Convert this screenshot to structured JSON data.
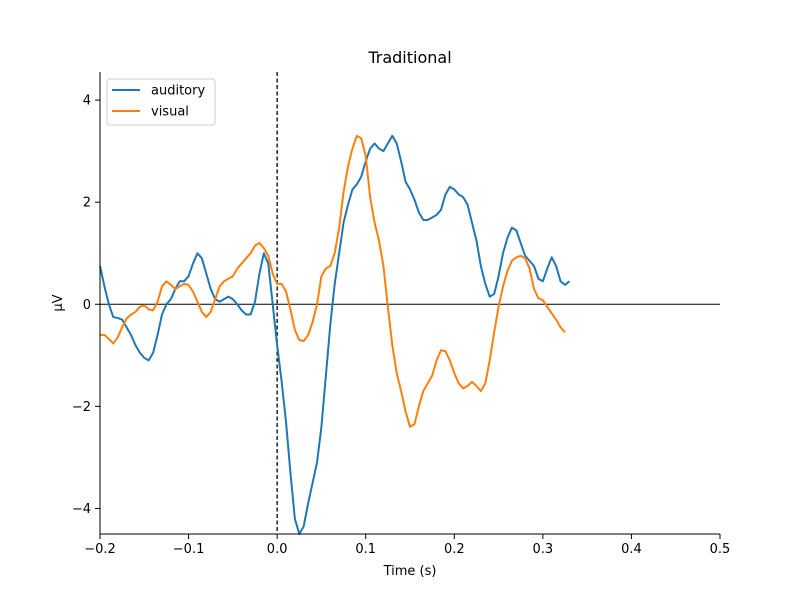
{
  "chart_data": {
    "type": "line",
    "title": "Traditional",
    "xlabel": "Time (s)",
    "ylabel": "µV",
    "xlim": [
      -0.2,
      0.5
    ],
    "ylim": [
      -4.5,
      4.55
    ],
    "x_ticks": [
      -0.2,
      -0.1,
      0.0,
      0.1,
      0.2,
      0.3,
      0.4,
      0.5
    ],
    "x_tick_labels": [
      "−0.2",
      "−0.1",
      "0.0",
      "0.1",
      "0.2",
      "0.3",
      "0.4",
      "0.5"
    ],
    "y_ticks": [
      -4,
      -2,
      0,
      2,
      4
    ],
    "y_tick_labels": [
      "−4",
      "−2",
      "0",
      "2",
      "4"
    ],
    "legend_position": "top-left",
    "zero_line": true,
    "event_line_x": 0.0,
    "series": [
      {
        "name": "auditory",
        "color": "#1f77b4",
        "points": [
          [
            -0.2,
            0.75
          ],
          [
            -0.195,
            0.35
          ],
          [
            -0.19,
            0.0
          ],
          [
            -0.185,
            -0.25
          ],
          [
            -0.18,
            -0.27
          ],
          [
            -0.175,
            -0.3
          ],
          [
            -0.17,
            -0.45
          ],
          [
            -0.165,
            -0.6
          ],
          [
            -0.16,
            -0.8
          ],
          [
            -0.155,
            -0.95
          ],
          [
            -0.15,
            -1.05
          ],
          [
            -0.145,
            -1.1
          ],
          [
            -0.14,
            -0.95
          ],
          [
            -0.135,
            -0.6
          ],
          [
            -0.13,
            -0.2
          ],
          [
            -0.125,
            0.0
          ],
          [
            -0.12,
            0.1
          ],
          [
            -0.115,
            0.3
          ],
          [
            -0.11,
            0.45
          ],
          [
            -0.105,
            0.45
          ],
          [
            -0.1,
            0.55
          ],
          [
            -0.095,
            0.8
          ],
          [
            -0.09,
            1.0
          ],
          [
            -0.085,
            0.9
          ],
          [
            -0.08,
            0.6
          ],
          [
            -0.075,
            0.3
          ],
          [
            -0.07,
            0.1
          ],
          [
            -0.065,
            0.05
          ],
          [
            -0.06,
            0.1
          ],
          [
            -0.055,
            0.15
          ],
          [
            -0.05,
            0.1
          ],
          [
            -0.045,
            0.0
          ],
          [
            -0.04,
            -0.12
          ],
          [
            -0.035,
            -0.2
          ],
          [
            -0.03,
            -0.2
          ],
          [
            -0.025,
            0.05
          ],
          [
            -0.02,
            0.6
          ],
          [
            -0.015,
            1.0
          ],
          [
            -0.01,
            0.8
          ],
          [
            -0.005,
            0.0
          ],
          [
            0.0,
            -0.8
          ],
          [
            0.005,
            -1.5
          ],
          [
            0.01,
            -2.3
          ],
          [
            0.015,
            -3.3
          ],
          [
            0.02,
            -4.2
          ],
          [
            0.025,
            -4.5
          ],
          [
            0.03,
            -4.35
          ],
          [
            0.035,
            -3.9
          ],
          [
            0.04,
            -3.5
          ],
          [
            0.045,
            -3.1
          ],
          [
            0.05,
            -2.4
          ],
          [
            0.055,
            -1.4
          ],
          [
            0.06,
            -0.4
          ],
          [
            0.065,
            0.4
          ],
          [
            0.07,
            1.0
          ],
          [
            0.075,
            1.6
          ],
          [
            0.08,
            1.95
          ],
          [
            0.085,
            2.25
          ],
          [
            0.09,
            2.35
          ],
          [
            0.095,
            2.5
          ],
          [
            0.1,
            2.8
          ],
          [
            0.105,
            3.05
          ],
          [
            0.11,
            3.15
          ],
          [
            0.115,
            3.05
          ],
          [
            0.12,
            3.0
          ],
          [
            0.125,
            3.15
          ],
          [
            0.13,
            3.3
          ],
          [
            0.135,
            3.15
          ],
          [
            0.14,
            2.8
          ],
          [
            0.145,
            2.4
          ],
          [
            0.15,
            2.25
          ],
          [
            0.155,
            2.05
          ],
          [
            0.16,
            1.8
          ],
          [
            0.165,
            1.65
          ],
          [
            0.17,
            1.65
          ],
          [
            0.175,
            1.7
          ],
          [
            0.18,
            1.75
          ],
          [
            0.185,
            1.85
          ],
          [
            0.19,
            2.15
          ],
          [
            0.195,
            2.3
          ],
          [
            0.2,
            2.25
          ],
          [
            0.205,
            2.15
          ],
          [
            0.21,
            2.1
          ],
          [
            0.215,
            1.95
          ],
          [
            0.22,
            1.6
          ],
          [
            0.225,
            1.25
          ],
          [
            0.23,
            0.75
          ],
          [
            0.235,
            0.4
          ],
          [
            0.24,
            0.15
          ],
          [
            0.245,
            0.2
          ],
          [
            0.25,
            0.55
          ],
          [
            0.255,
            1.0
          ],
          [
            0.26,
            1.3
          ],
          [
            0.265,
            1.5
          ],
          [
            0.27,
            1.45
          ],
          [
            0.275,
            1.2
          ],
          [
            0.28,
            0.95
          ],
          [
            0.285,
            0.85
          ],
          [
            0.29,
            0.75
          ],
          [
            0.295,
            0.5
          ],
          [
            0.3,
            0.45
          ],
          [
            0.305,
            0.7
          ],
          [
            0.31,
            0.92
          ],
          [
            0.315,
            0.75
          ],
          [
            0.32,
            0.45
          ],
          [
            0.325,
            0.38
          ],
          [
            0.33,
            0.45
          ]
        ]
      },
      {
        "name": "visual",
        "color": "#ff7f0e",
        "points": [
          [
            -0.2,
            -0.6
          ],
          [
            -0.195,
            -0.6
          ],
          [
            -0.19,
            -0.68
          ],
          [
            -0.185,
            -0.77
          ],
          [
            -0.18,
            -0.65
          ],
          [
            -0.175,
            -0.45
          ],
          [
            -0.17,
            -0.28
          ],
          [
            -0.165,
            -0.2
          ],
          [
            -0.16,
            -0.15
          ],
          [
            -0.155,
            -0.05
          ],
          [
            -0.15,
            -0.02
          ],
          [
            -0.145,
            -0.1
          ],
          [
            -0.14,
            -0.12
          ],
          [
            -0.135,
            0.05
          ],
          [
            -0.13,
            0.35
          ],
          [
            -0.125,
            0.45
          ],
          [
            -0.12,
            0.38
          ],
          [
            -0.115,
            0.3
          ],
          [
            -0.11,
            0.35
          ],
          [
            -0.105,
            0.4
          ],
          [
            -0.1,
            0.38
          ],
          [
            -0.095,
            0.25
          ],
          [
            -0.09,
            0.05
          ],
          [
            -0.085,
            -0.15
          ],
          [
            -0.08,
            -0.25
          ],
          [
            -0.075,
            -0.15
          ],
          [
            -0.07,
            0.1
          ],
          [
            -0.065,
            0.35
          ],
          [
            -0.06,
            0.45
          ],
          [
            -0.055,
            0.5
          ],
          [
            -0.05,
            0.55
          ],
          [
            -0.045,
            0.7
          ],
          [
            -0.04,
            0.8
          ],
          [
            -0.035,
            0.9
          ],
          [
            -0.03,
            1.0
          ],
          [
            -0.025,
            1.15
          ],
          [
            -0.02,
            1.2
          ],
          [
            -0.015,
            1.1
          ],
          [
            -0.01,
            0.95
          ],
          [
            -0.005,
            0.6
          ],
          [
            0.0,
            0.4
          ],
          [
            0.005,
            0.4
          ],
          [
            0.01,
            0.25
          ],
          [
            0.015,
            -0.1
          ],
          [
            0.02,
            -0.5
          ],
          [
            0.025,
            -0.7
          ],
          [
            0.03,
            -0.72
          ],
          [
            0.035,
            -0.6
          ],
          [
            0.04,
            -0.35
          ],
          [
            0.045,
            0.0
          ],
          [
            0.05,
            0.55
          ],
          [
            0.055,
            0.7
          ],
          [
            0.06,
            0.75
          ],
          [
            0.065,
            1.0
          ],
          [
            0.07,
            1.5
          ],
          [
            0.075,
            2.2
          ],
          [
            0.08,
            2.7
          ],
          [
            0.085,
            3.05
          ],
          [
            0.09,
            3.3
          ],
          [
            0.095,
            3.25
          ],
          [
            0.1,
            2.9
          ],
          [
            0.105,
            2.1
          ],
          [
            0.11,
            1.6
          ],
          [
            0.115,
            1.25
          ],
          [
            0.12,
            0.75
          ],
          [
            0.125,
            -0.05
          ],
          [
            0.13,
            -0.8
          ],
          [
            0.135,
            -1.35
          ],
          [
            0.14,
            -1.7
          ],
          [
            0.145,
            -2.1
          ],
          [
            0.15,
            -2.4
          ],
          [
            0.155,
            -2.35
          ],
          [
            0.16,
            -2.0
          ],
          [
            0.165,
            -1.7
          ],
          [
            0.17,
            -1.55
          ],
          [
            0.175,
            -1.4
          ],
          [
            0.18,
            -1.1
          ],
          [
            0.185,
            -0.9
          ],
          [
            0.19,
            -0.92
          ],
          [
            0.195,
            -1.1
          ],
          [
            0.2,
            -1.35
          ],
          [
            0.205,
            -1.55
          ],
          [
            0.21,
            -1.65
          ],
          [
            0.215,
            -1.6
          ],
          [
            0.22,
            -1.52
          ],
          [
            0.225,
            -1.6
          ],
          [
            0.23,
            -1.7
          ],
          [
            0.235,
            -1.55
          ],
          [
            0.24,
            -1.1
          ],
          [
            0.245,
            -0.55
          ],
          [
            0.25,
            -0.05
          ],
          [
            0.255,
            0.35
          ],
          [
            0.26,
            0.65
          ],
          [
            0.265,
            0.85
          ],
          [
            0.27,
            0.92
          ],
          [
            0.275,
            0.95
          ],
          [
            0.28,
            0.9
          ],
          [
            0.285,
            0.7
          ],
          [
            0.29,
            0.3
          ],
          [
            0.295,
            0.12
          ],
          [
            0.3,
            0.08
          ],
          [
            0.305,
            -0.05
          ],
          [
            0.31,
            -0.18
          ],
          [
            0.315,
            -0.3
          ],
          [
            0.32,
            -0.45
          ],
          [
            0.325,
            -0.55
          ]
        ]
      }
    ]
  }
}
